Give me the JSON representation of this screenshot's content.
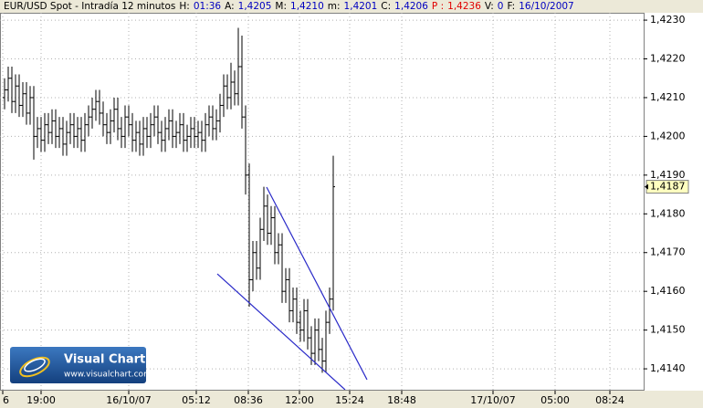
{
  "chart_data": {
    "type": "ohlc",
    "header": {
      "title": "EUR/USD Spot - Intradía 12 minutos",
      "fields": [
        {
          "label": "H:",
          "value": "01:36"
        },
        {
          "label": "A:",
          "value": "1,4205"
        },
        {
          "label": "M:",
          "value": "1,4210"
        },
        {
          "label": "m:",
          "value": "1,4201"
        },
        {
          "label": "C:",
          "value": "1,4206"
        },
        {
          "label": "P :",
          "value": "1,4236",
          "color": "#e00000"
        },
        {
          "label": "V:",
          "value": "0"
        },
        {
          "label": "F:",
          "value": "16/10/2007"
        }
      ]
    },
    "color": "#000000",
    "open": [
      1.421,
      1.4212,
      1.4215,
      1.4209,
      1.4213,
      1.4208,
      1.4211,
      1.4206,
      1.421,
      1.42,
      1.4202,
      1.4199,
      1.4203,
      1.4201,
      1.4204,
      1.42,
      1.4202,
      1.4198,
      1.4201,
      1.4203,
      1.42,
      1.4202,
      1.4199,
      1.4203,
      1.4205,
      1.4207,
      1.4209,
      1.4206,
      1.4203,
      1.4201,
      1.4204,
      1.4207,
      1.4202,
      1.42,
      1.4205,
      1.4203,
      1.4199,
      1.4201,
      1.4198,
      1.4202,
      1.42,
      1.4203,
      1.4205,
      1.4201,
      1.4199,
      1.4202,
      1.4204,
      1.42,
      1.4201,
      1.4203,
      1.4199,
      1.42,
      1.4202,
      1.42,
      1.4201,
      1.4199,
      1.4203,
      1.4205,
      1.4202,
      1.4204,
      1.4208,
      1.4213,
      1.421,
      1.4214,
      1.4211,
      1.4218,
      1.4205,
      1.419,
      1.4163,
      1.417,
      1.4166,
      1.4176,
      1.4182,
      1.4175,
      1.4179,
      1.417,
      1.4172,
      1.416,
      1.4163,
      1.4155,
      1.4158,
      1.4152,
      1.415,
      1.4155,
      1.4148,
      1.4144,
      1.415,
      1.4145,
      1.4142,
      1.4152,
      1.4158
    ],
    "high": [
      1.4215,
      1.4218,
      1.4218,
      1.4216,
      1.4216,
      1.4214,
      1.4214,
      1.4213,
      1.4213,
      1.4205,
      1.4205,
      1.4206,
      1.4206,
      1.4207,
      1.4207,
      1.4205,
      1.4205,
      1.4204,
      1.4206,
      1.4206,
      1.4205,
      1.4205,
      1.4206,
      1.4208,
      1.421,
      1.4212,
      1.4212,
      1.4209,
      1.4206,
      1.4207,
      1.421,
      1.421,
      1.4205,
      1.4208,
      1.4208,
      1.4206,
      1.4204,
      1.4204,
      1.4205,
      1.4205,
      1.4206,
      1.4208,
      1.4208,
      1.4204,
      1.4205,
      1.4207,
      1.4207,
      1.4204,
      1.4206,
      1.4206,
      1.4203,
      1.4205,
      1.4205,
      1.4204,
      1.4204,
      1.4206,
      1.4208,
      1.4208,
      1.4207,
      1.4211,
      1.4216,
      1.4216,
      1.4219,
      1.4217,
      1.4228,
      1.4226,
      1.4208,
      1.4193,
      1.4173,
      1.4173,
      1.4179,
      1.4187,
      1.4185,
      1.4182,
      1.4182,
      1.4175,
      1.4175,
      1.4166,
      1.4166,
      1.4161,
      1.4161,
      1.4155,
      1.4158,
      1.4158,
      1.4151,
      1.4153,
      1.4153,
      1.4148,
      1.4155,
      1.4161,
      1.4195
    ],
    "low": [
      1.4207,
      1.4209,
      1.4206,
      1.4206,
      1.4205,
      1.4205,
      1.4203,
      1.4203,
      1.4194,
      1.4197,
      1.4196,
      1.4196,
      1.4198,
      1.4198,
      1.4197,
      1.4197,
      1.4195,
      1.4195,
      1.4198,
      1.4197,
      1.4197,
      1.4196,
      1.4196,
      1.42,
      1.4202,
      1.4204,
      1.4203,
      1.42,
      1.4198,
      1.4198,
      1.4201,
      1.4199,
      1.4197,
      1.4197,
      1.42,
      1.4196,
      1.4196,
      1.4195,
      1.4195,
      1.4197,
      1.4197,
      1.42,
      1.4198,
      1.4196,
      1.4196,
      1.4199,
      1.4197,
      1.4197,
      1.4198,
      1.4196,
      1.4196,
      1.4197,
      1.4197,
      1.4197,
      1.4196,
      1.4196,
      1.42,
      1.4199,
      1.4199,
      1.4201,
      1.4205,
      1.4207,
      1.4207,
      1.4208,
      1.4208,
      1.4202,
      1.4185,
      1.4156,
      1.416,
      1.4163,
      1.4163,
      1.4173,
      1.4172,
      1.4172,
      1.4167,
      1.4167,
      1.4157,
      1.4157,
      1.4152,
      1.4152,
      1.4149,
      1.4147,
      1.4147,
      1.4145,
      1.4141,
      1.4141,
      1.4142,
      1.4139,
      1.4139,
      1.4149,
      1.4155
    ],
    "close": [
      1.4212,
      1.4215,
      1.4209,
      1.4213,
      1.4208,
      1.4211,
      1.4206,
      1.421,
      1.42,
      1.4202,
      1.4199,
      1.4203,
      1.4201,
      1.4204,
      1.42,
      1.4202,
      1.4198,
      1.4201,
      1.4203,
      1.42,
      1.4202,
      1.4199,
      1.4203,
      1.4205,
      1.4207,
      1.4209,
      1.4206,
      1.4203,
      1.4201,
      1.4204,
      1.4207,
      1.4202,
      1.42,
      1.4205,
      1.4203,
      1.4199,
      1.4201,
      1.4198,
      1.4202,
      1.42,
      1.4203,
      1.4205,
      1.4201,
      1.4199,
      1.4202,
      1.4204,
      1.42,
      1.4201,
      1.4203,
      1.4199,
      1.42,
      1.4202,
      1.42,
      1.4201,
      1.4199,
      1.4203,
      1.4205,
      1.4202,
      1.4204,
      1.4208,
      1.4213,
      1.421,
      1.4214,
      1.4211,
      1.4218,
      1.4205,
      1.419,
      1.4163,
      1.417,
      1.4166,
      1.4176,
      1.4182,
      1.4175,
      1.4179,
      1.417,
      1.4172,
      1.416,
      1.4163,
      1.4155,
      1.4158,
      1.4152,
      1.415,
      1.4155,
      1.4148,
      1.4144,
      1.415,
      1.4145,
      1.4142,
      1.4152,
      1.4158,
      1.4187
    ],
    "xlim": [
      -1.25,
      175
    ],
    "xticks": [
      {
        "value": -0.5,
        "label": "6"
      },
      {
        "value": 10,
        "label": "19:00"
      },
      {
        "value": 34,
        "label": "16/10/07"
      },
      {
        "value": 52.5,
        "label": "05:12"
      },
      {
        "value": 66.75,
        "label": "08:36"
      },
      {
        "value": 80.75,
        "label": "12:00"
      },
      {
        "value": 94.5,
        "label": "15:24"
      },
      {
        "value": 108.75,
        "label": "18:48"
      },
      {
        "value": 133.75,
        "label": "17/10/07"
      },
      {
        "value": 150.75,
        "label": "05:00"
      },
      {
        "value": 165.75,
        "label": "08:24"
      }
    ],
    "ylim": [
      1.41346,
      1.42319
    ],
    "yticks": [
      {
        "value": 1.414,
        "label": "1,4140"
      },
      {
        "value": 1.415,
        "label": "1,4150"
      },
      {
        "value": 1.416,
        "label": "1,4160"
      },
      {
        "value": 1.417,
        "label": "1,4170"
      },
      {
        "value": 1.418,
        "label": "1,4180"
      },
      {
        "value": 1.419,
        "label": "1,4190"
      },
      {
        "value": 1.42,
        "label": "1,4200"
      },
      {
        "value": 1.421,
        "label": "1,4210"
      },
      {
        "value": 1.422,
        "label": "1,4220"
      },
      {
        "value": 1.423,
        "label": "1,4230"
      }
    ],
    "grid": true,
    "last_price": {
      "value": 1.4187,
      "label": "1,4187"
    },
    "trendlines": [
      {
        "color": "#2a2ac8",
        "x": [
          71.75,
          99.25
        ],
        "y": [
          1.41869,
          1.41372
        ]
      },
      {
        "color": "#2a2ac8",
        "x": [
          58.25,
          93.25
        ],
        "y": [
          1.41645,
          1.41346
        ]
      }
    ],
    "logo": {
      "name": "Visual Chart",
      "url": "www.visualchart.com"
    }
  }
}
